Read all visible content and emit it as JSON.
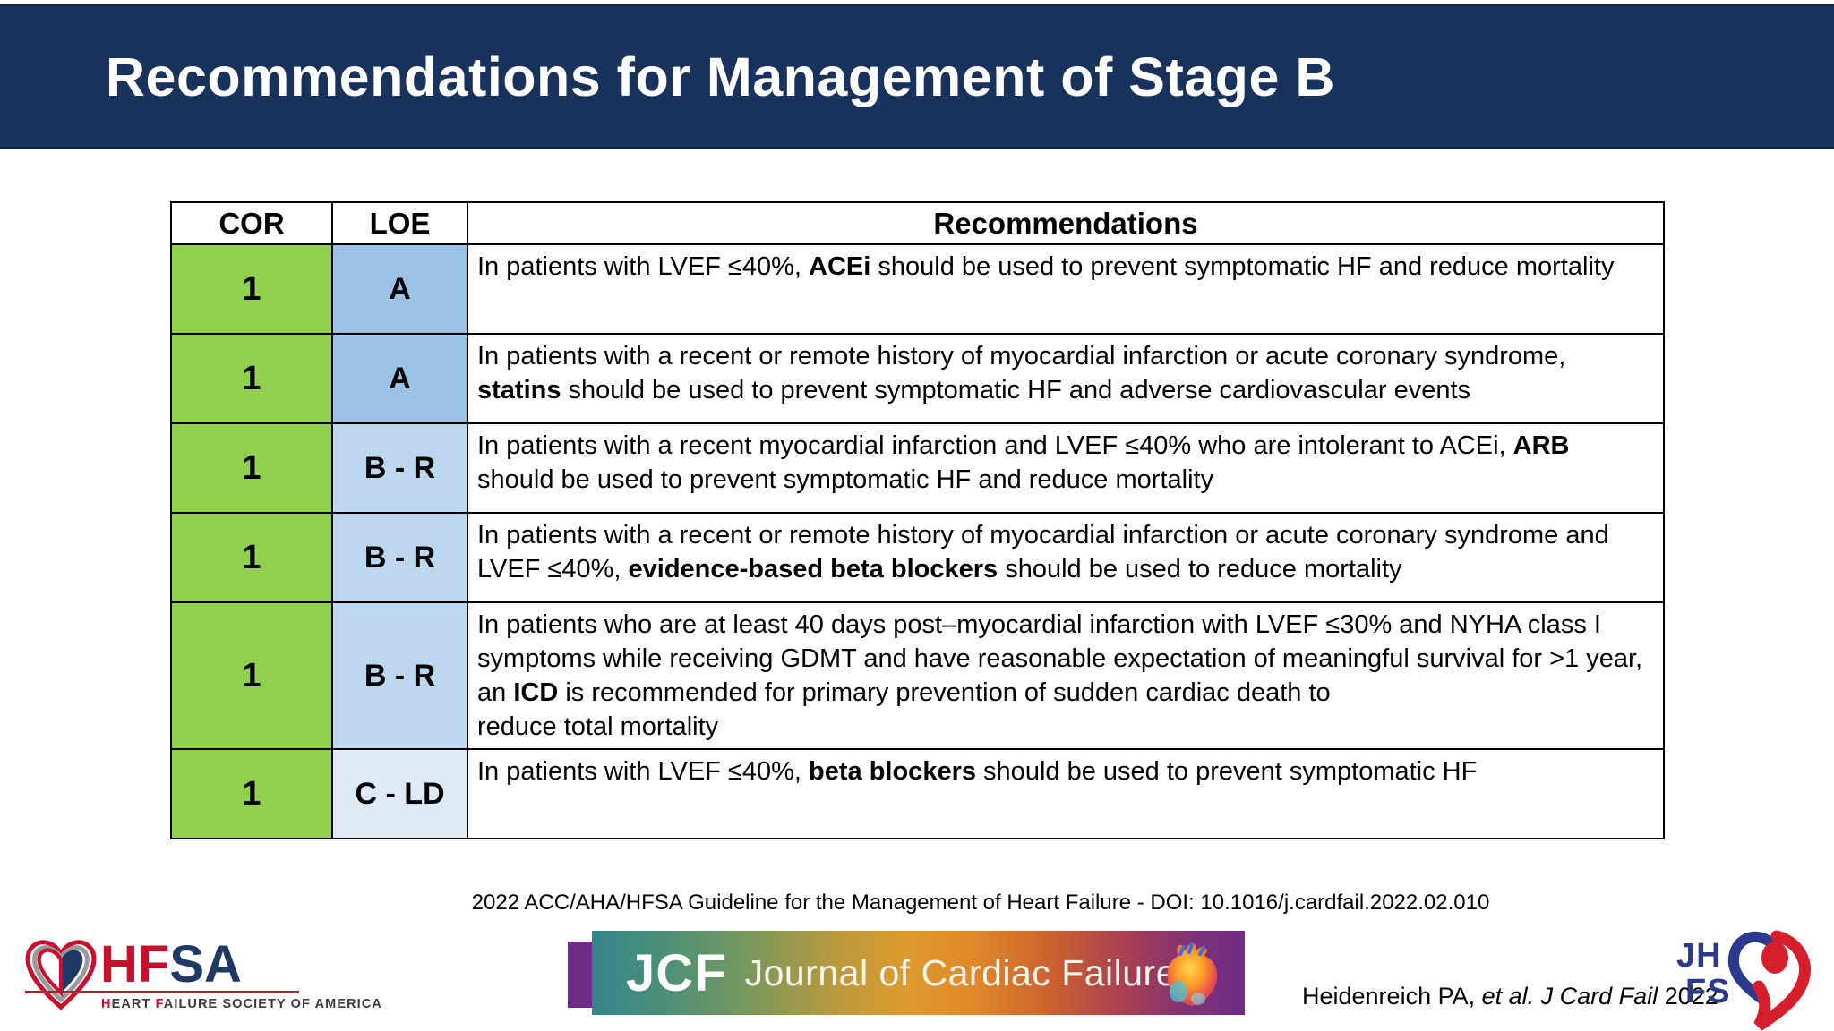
{
  "slide": {
    "title": "Recommendations for Management of Stage B",
    "citation": "2022 ACC/AHA/HFSA Guideline for the Management of Heart Failure - DOI: 10.1016/j.cardfail.2022.02.010"
  },
  "colors": {
    "navy": "#18325C",
    "green": "#92D050",
    "loe-a": "#9CC3E5",
    "loe-br": "#BDD7EE",
    "loe-cld": "#DEEAF6",
    "hfsa-red": "#C8102E",
    "hfsa-navy": "#1F3864",
    "jcf-purple": "#6E2C86",
    "jhfs-navy": "#2B3A8E",
    "jhfs-red": "#D61F2C"
  },
  "table": {
    "headers": [
      "COR",
      "LOE",
      "Recommendations"
    ],
    "rows": [
      {
        "cor": "1",
        "loe": "A",
        "loe_style": "a",
        "rec": [
          {
            "text": "In patients with LVEF ≤40%, "
          },
          {
            "text": "ACEi",
            "bold": true
          },
          {
            "text": " should be used to prevent symptomatic HF and reduce mortality"
          }
        ]
      },
      {
        "cor": "1",
        "loe": "A",
        "loe_style": "a",
        "rec": [
          {
            "text": "In patients with a recent or remote history of myocardial infarction or acute coronary syndrome, "
          },
          {
            "text": "statins",
            "bold": true
          },
          {
            "text": " should be used to prevent symptomatic HF and adverse cardiovascular events"
          }
        ]
      },
      {
        "cor": "1",
        "loe": "B - R",
        "loe_style": "br",
        "rec": [
          {
            "text": "In patients with a recent myocardial infarction and LVEF ≤40% who are intolerant to ACEi, "
          },
          {
            "text": "ARB",
            "bold": true
          },
          {
            "text": " should be used to prevent symptomatic HF and reduce mortality"
          }
        ]
      },
      {
        "cor": "1",
        "loe": "B - R",
        "loe_style": "br",
        "rec": [
          {
            "text": "In patients with a recent or remote history of myocardial infarction or acute coronary syndrome and LVEF ≤40%, "
          },
          {
            "text": "evidence-based beta blockers",
            "bold": true
          },
          {
            "text": " should be used to reduce mortality"
          }
        ]
      },
      {
        "cor": "1",
        "loe": "B - R",
        "loe_style": "br",
        "rec": [
          {
            "text": "In patients who are at least 40 days post–myocardial infarction with LVEF ≤30% and NYHA class I symptoms while receiving GDMT and have reasonable expectation of meaningful survival for >1 year, an "
          },
          {
            "text": "ICD",
            "bold": true
          },
          {
            "text": " is recommended for primary prevention of sudden cardiac death to"
          },
          {
            "br": true
          },
          {
            "text": "reduce total mortality"
          }
        ]
      },
      {
        "cor": "1",
        "loe": "C - LD",
        "loe_style": "cld",
        "rec": [
          {
            "text": "In patients with LVEF ≤40%, "
          },
          {
            "text": "beta blockers",
            "bold": true
          },
          {
            "text": " should be used to prevent symptomatic HF"
          }
        ]
      }
    ]
  },
  "footer": {
    "hfsa": {
      "abbr_hf": "HF",
      "abbr_sa": "SA",
      "tagline_segments": [
        {
          "text": "H",
          "red": true
        },
        {
          "text": "EART "
        },
        {
          "text": "F",
          "red": true
        },
        {
          "text": "AILURE SOCIETY OF AMERICA"
        }
      ]
    },
    "jcf": {
      "abbr": "JCF",
      "journal": "Journal of Cardiac Failure"
    },
    "reference": {
      "segments": [
        {
          "text": "Heidenreich PA, "
        },
        {
          "text": "et al. J Card Fail",
          "italic": true
        },
        {
          "text": " 2022"
        }
      ]
    },
    "jhfs": {
      "line1": "JH",
      "line2": "FS"
    }
  }
}
